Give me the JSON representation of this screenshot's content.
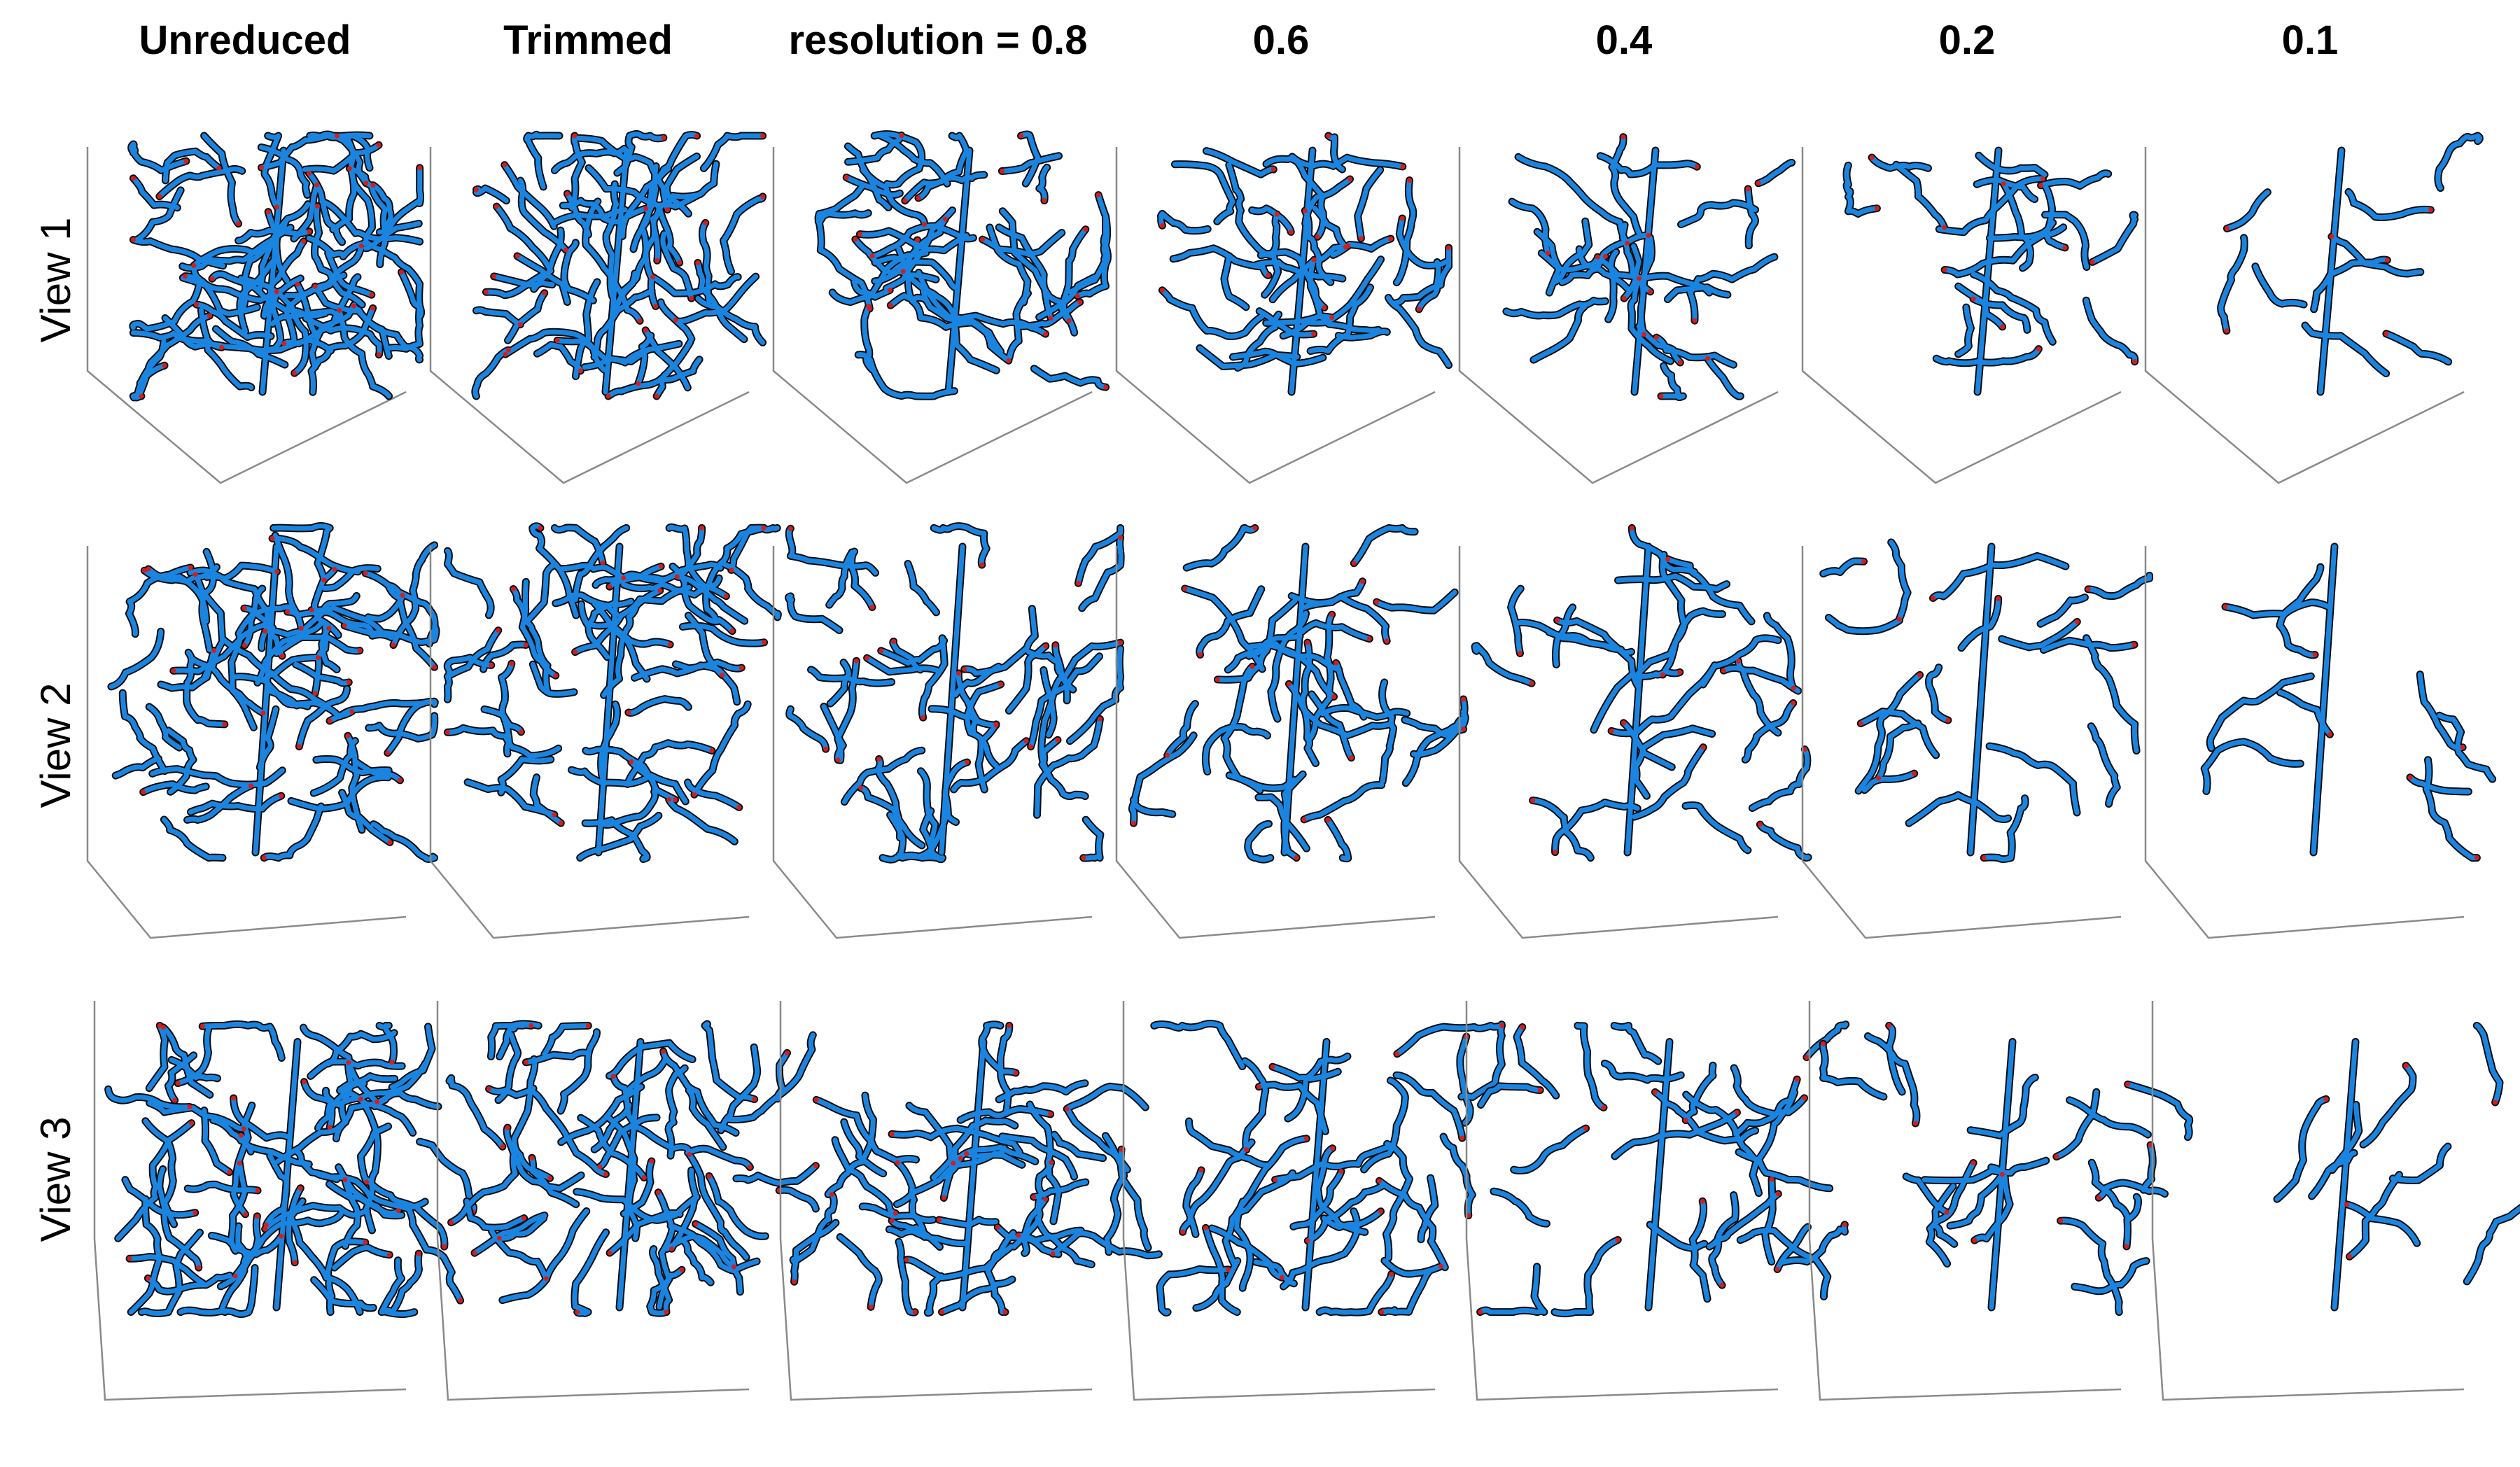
{
  "column_titles": [
    "Unreduced",
    "Trimmed",
    "resolution = 0.8",
    "0.6",
    "0.4",
    "0.2",
    "0.1"
  ],
  "row_labels": [
    "View 1",
    "View 2",
    "View 3"
  ],
  "colors": {
    "vessel": "#1a85e0",
    "outline": "#0a0a0a",
    "endpoint": "#d21e1e",
    "axis": "#8a8a8a"
  }
}
